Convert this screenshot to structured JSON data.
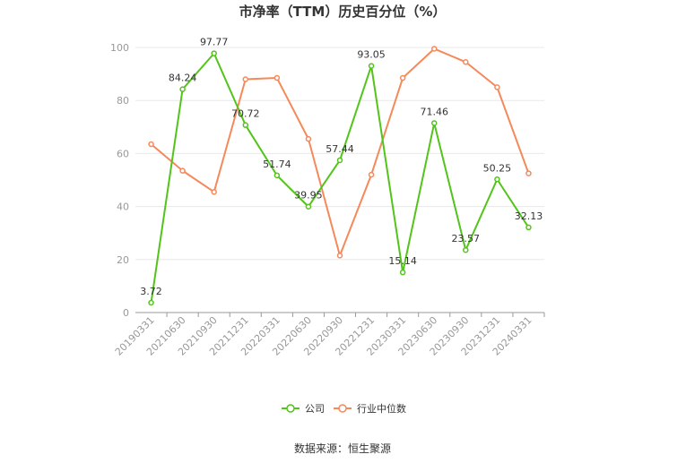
{
  "chart_data": {
    "type": "line",
    "title": "市净率（TTM）历史百分位（%）",
    "xlabel": "",
    "ylabel": "",
    "ylim": [
      0,
      100
    ],
    "yticks": [
      0,
      20,
      40,
      60,
      80,
      100
    ],
    "grid": true,
    "legend_position": "bottom",
    "categories": [
      "20190331",
      "20210630",
      "20210930",
      "20211231",
      "20220331",
      "20220630",
      "20220930",
      "20221231",
      "20230331",
      "20230630",
      "20230930",
      "20231231",
      "20240331"
    ],
    "series": [
      {
        "name": "公司",
        "color": "#52c41a",
        "values": [
          3.72,
          84.24,
          97.77,
          70.72,
          51.74,
          39.95,
          57.44,
          93.05,
          15.14,
          71.46,
          23.57,
          50.25,
          32.13
        ],
        "show_labels": true
      },
      {
        "name": "行业中位数",
        "color": "#f5895a",
        "values": [
          63.5,
          53.5,
          45.5,
          88,
          88.5,
          65.5,
          21.5,
          52,
          88.5,
          99.5,
          94.5,
          85,
          52.5
        ],
        "show_labels": false
      }
    ]
  },
  "source_text": "数据来源：恒生聚源"
}
